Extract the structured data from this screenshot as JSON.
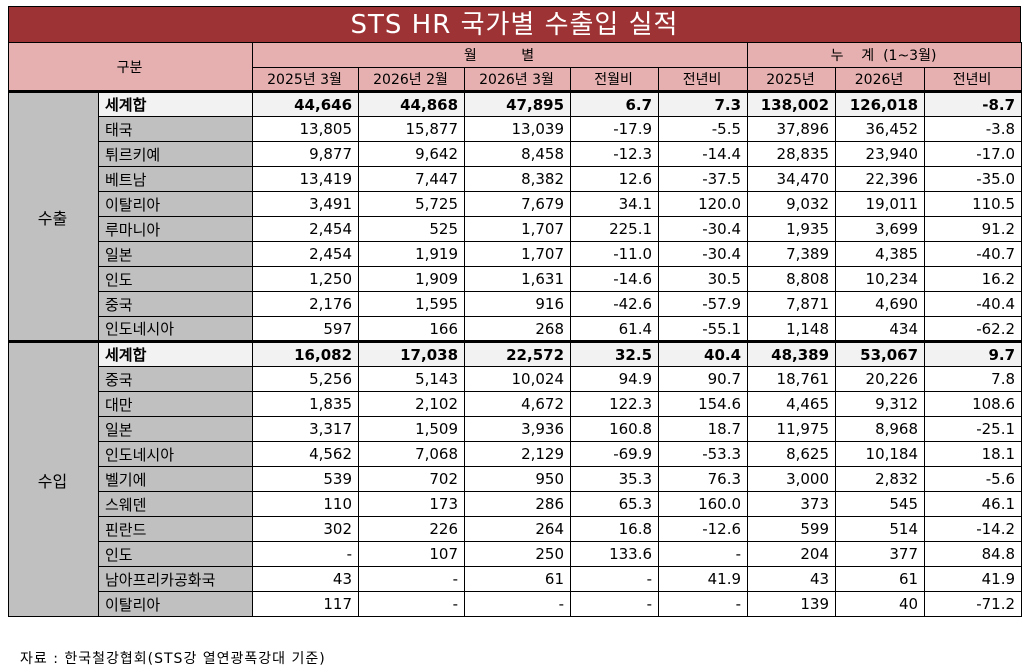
{
  "title": "STS HR 국가별 수출입 실적",
  "header": {
    "category": "구분",
    "monthly": "월          별",
    "cumulative": "누    계  (1~3월)",
    "columns": [
      "2025년 3월",
      "2026년 2월",
      "2026년 3월",
      "전월비",
      "전년비",
      "2025년",
      "2026년",
      "전년비"
    ]
  },
  "groups": [
    {
      "label": "수출",
      "rows": [
        {
          "country": "세계합",
          "values": [
            "44,646",
            "44,868",
            "47,895",
            "6.7",
            "7.3",
            "138,002",
            "126,018",
            "-8.7"
          ]
        },
        {
          "country": "태국",
          "values": [
            "13,805",
            "15,877",
            "13,039",
            "-17.9",
            "-5.5",
            "37,896",
            "36,452",
            "-3.8"
          ]
        },
        {
          "country": "튀르키예",
          "values": [
            "9,877",
            "9,642",
            "8,458",
            "-12.3",
            "-14.4",
            "28,835",
            "23,940",
            "-17.0"
          ]
        },
        {
          "country": "베트남",
          "values": [
            "13,419",
            "7,447",
            "8,382",
            "12.6",
            "-37.5",
            "34,470",
            "22,396",
            "-35.0"
          ]
        },
        {
          "country": "이탈리아",
          "values": [
            "3,491",
            "5,725",
            "7,679",
            "34.1",
            "120.0",
            "9,032",
            "19,011",
            "110.5"
          ]
        },
        {
          "country": "루마니아",
          "values": [
            "2,454",
            "525",
            "1,707",
            "225.1",
            "-30.4",
            "1,935",
            "3,699",
            "91.2"
          ]
        },
        {
          "country": "일본",
          "values": [
            "2,454",
            "1,919",
            "1,707",
            "-11.0",
            "-30.4",
            "7,389",
            "4,385",
            "-40.7"
          ]
        },
        {
          "country": "인도",
          "values": [
            "1,250",
            "1,909",
            "1,631",
            "-14.6",
            "30.5",
            "8,808",
            "10,234",
            "16.2"
          ]
        },
        {
          "country": "중국",
          "values": [
            "2,176",
            "1,595",
            "916",
            "-42.6",
            "-57.9",
            "7,871",
            "4,690",
            "-40.4"
          ]
        },
        {
          "country": "인도네시아",
          "values": [
            "597",
            "166",
            "268",
            "61.4",
            "-55.1",
            "1,148",
            "434",
            "-62.2"
          ]
        }
      ]
    },
    {
      "label": "수입",
      "rows": [
        {
          "country": "세계합",
          "values": [
            "16,082",
            "17,038",
            "22,572",
            "32.5",
            "40.4",
            "48,389",
            "53,067",
            "9.7"
          ]
        },
        {
          "country": "중국",
          "values": [
            "5,256",
            "5,143",
            "10,024",
            "94.9",
            "90.7",
            "18,761",
            "20,226",
            "7.8"
          ]
        },
        {
          "country": "대만",
          "values": [
            "1,835",
            "2,102",
            "4,672",
            "122.3",
            "154.6",
            "4,465",
            "9,312",
            "108.6"
          ]
        },
        {
          "country": "일본",
          "values": [
            "3,317",
            "1,509",
            "3,936",
            "160.8",
            "18.7",
            "11,975",
            "8,968",
            "-25.1"
          ]
        },
        {
          "country": "인도네시아",
          "values": [
            "4,562",
            "7,068",
            "2,129",
            "-69.9",
            "-53.3",
            "8,625",
            "10,184",
            "18.1"
          ]
        },
        {
          "country": "벨기에",
          "values": [
            "539",
            "702",
            "950",
            "35.3",
            "76.3",
            "3,000",
            "2,832",
            "-5.6"
          ]
        },
        {
          "country": "스웨덴",
          "values": [
            "110",
            "173",
            "286",
            "65.3",
            "160.0",
            "373",
            "545",
            "46.1"
          ]
        },
        {
          "country": "핀란드",
          "values": [
            "302",
            "226",
            "264",
            "16.8",
            "-12.6",
            "599",
            "514",
            "-14.2"
          ]
        },
        {
          "country": "인도",
          "values": [
            "-",
            "107",
            "250",
            "133.6",
            "-",
            "204",
            "377",
            "84.8"
          ]
        },
        {
          "country": "남아프리카공화국",
          "values": [
            "43",
            "-",
            "61",
            "-",
            "41.9",
            "43",
            "61",
            "41.9"
          ]
        },
        {
          "country": "이탈리아",
          "values": [
            "117",
            "-",
            "-",
            "-",
            "-",
            "139",
            "40",
            "-71.2"
          ]
        }
      ]
    }
  ],
  "source": "자료 : 한국철강협회(STS강 열연광폭강대 기준)",
  "colors": {
    "title_bg": "#9e3335",
    "header_bg": "#e6b0b0",
    "category_bg": "#c0c0c0",
    "total_bg": "#f2f2f2"
  }
}
